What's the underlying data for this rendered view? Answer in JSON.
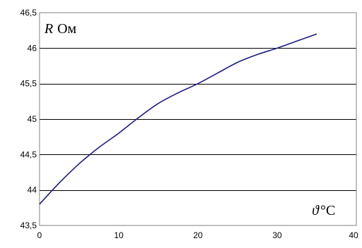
{
  "chart_data": {
    "type": "line",
    "ylabel_symbol": "R",
    "ylabel_unit": "Ом",
    "xlabel_symbol": "ϑ",
    "xlabel_unit": "°C",
    "xlim": [
      0,
      40
    ],
    "ylim": [
      43.5,
      46.5
    ],
    "xticks": [
      0,
      10,
      20,
      30,
      40
    ],
    "xtick_labels": [
      "0",
      "10",
      "20",
      "30",
      "40"
    ],
    "yticks": [
      43.5,
      44,
      44.5,
      45,
      45.5,
      46,
      46.5
    ],
    "ytick_labels": [
      "43,5",
      "44",
      "44,5",
      "45",
      "45,5",
      "46",
      "46,5"
    ],
    "grid": true,
    "series": [
      {
        "color": "#1b1b8a",
        "x": [
          0,
          2.5,
          5,
          7.5,
          10,
          12.5,
          15,
          17.5,
          20,
          22.5,
          25,
          27.5,
          30,
          32.5,
          35
        ],
        "y": [
          43.8,
          44.1,
          44.37,
          44.6,
          44.8,
          45.02,
          45.22,
          45.37,
          45.5,
          45.65,
          45.8,
          45.91,
          46.0,
          46.1,
          46.2
        ]
      }
    ]
  }
}
